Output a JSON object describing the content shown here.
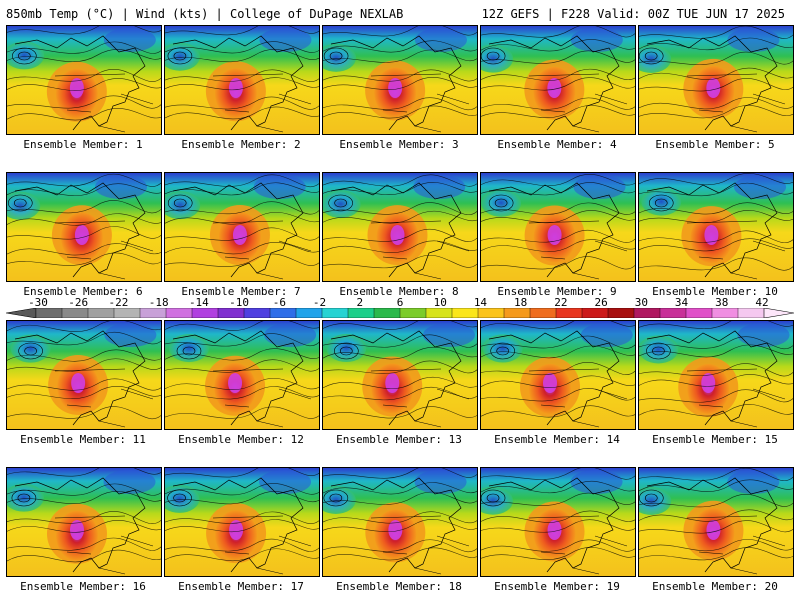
{
  "header": {
    "left_title": "850mb Temp (°C) | Wind (kts) | College of DuPage NEXLAB",
    "right_title": "12Z GEFS | F228 Valid: 00Z TUE JUN 17 2025"
  },
  "colorbar": {
    "labels": [
      "-30",
      "-26",
      "-22",
      "-18",
      "-14",
      "-10",
      "-6",
      "-2",
      "2",
      "6",
      "10",
      "14",
      "18",
      "22",
      "26",
      "30",
      "34",
      "38",
      "42"
    ],
    "colors": [
      "#6e6e6e",
      "#8a8a8a",
      "#a0a0a0",
      "#b4b4b4",
      "#c8a0d8",
      "#d070e0",
      "#b040e0",
      "#8030d0",
      "#5040e0",
      "#2f6ee8",
      "#21a3ea",
      "#26d3d3",
      "#1dcf8a",
      "#2bb94b",
      "#7ccc2a",
      "#d7e31b",
      "#fbe61b",
      "#fbc41b",
      "#f59a1c",
      "#ef6d1f",
      "#e8361f",
      "#cc1a1a",
      "#a81010",
      "#b01860",
      "#c83098",
      "#e050c8",
      "#f08ee2",
      "#f5c8f0"
    ]
  },
  "members": [
    {
      "caption": "Ensemble Member: 1"
    },
    {
      "caption": "Ensemble Member: 2"
    },
    {
      "caption": "Ensemble Member: 3"
    },
    {
      "caption": "Ensemble Member: 4"
    },
    {
      "caption": "Ensemble Member: 5"
    },
    {
      "caption": "Ensemble Member: 6"
    },
    {
      "caption": "Ensemble Member: 7"
    },
    {
      "caption": "Ensemble Member: 8"
    },
    {
      "caption": "Ensemble Member: 9"
    },
    {
      "caption": "Ensemble Member: 10"
    },
    {
      "caption": "Ensemble Member: 11"
    },
    {
      "caption": "Ensemble Member: 12"
    },
    {
      "caption": "Ensemble Member: 13"
    },
    {
      "caption": "Ensemble Member: 14"
    },
    {
      "caption": "Ensemble Member: 15"
    },
    {
      "caption": "Ensemble Member: 16"
    },
    {
      "caption": "Ensemble Member: 17"
    },
    {
      "caption": "Ensemble Member: 18"
    },
    {
      "caption": "Ensemble Member: 19"
    },
    {
      "caption": "Ensemble Member: 20"
    }
  ]
}
